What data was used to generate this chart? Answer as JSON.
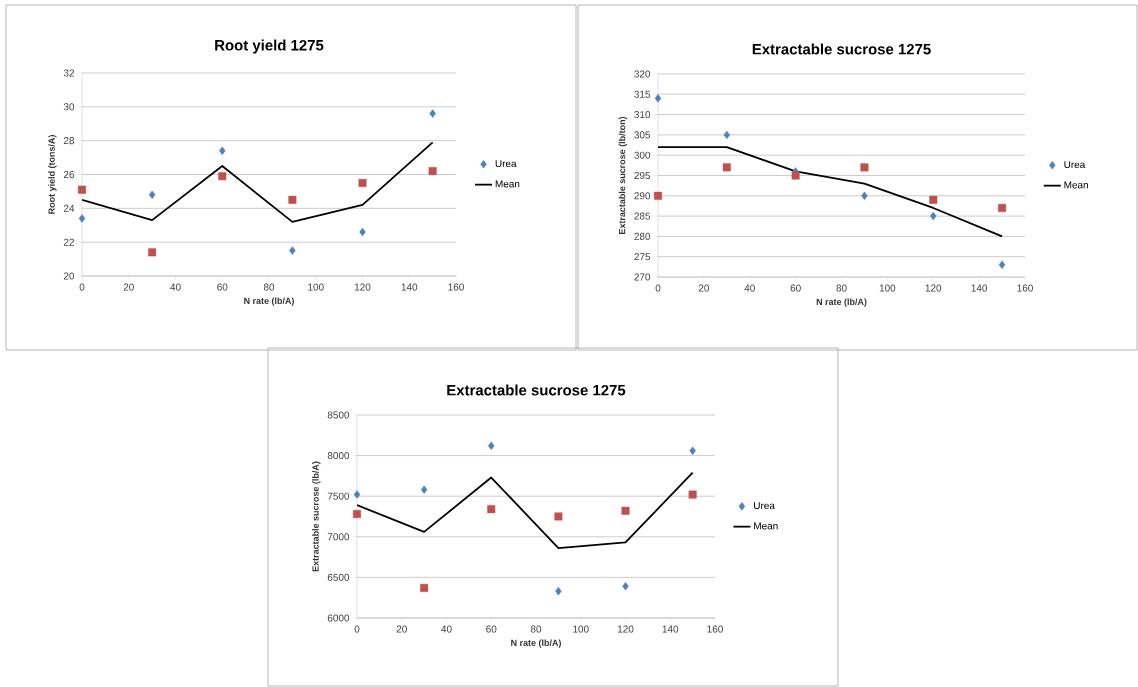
{
  "chart_data": [
    {
      "type": "scatter",
      "title": "Root yield 1275",
      "xlabel": "N rate (lb/A)",
      "ylabel": "Root yield (tons/A)",
      "x": [
        0,
        30,
        60,
        90,
        120,
        150
      ],
      "xlim": [
        0,
        160
      ],
      "xticks": [
        0,
        20,
        40,
        60,
        80,
        100,
        120,
        140,
        160
      ],
      "ylim": [
        20,
        32
      ],
      "yticks": [
        20,
        22,
        24,
        26,
        28,
        30,
        32
      ],
      "grid": "y",
      "legend": "right",
      "series": [
        {
          "name": "Urea",
          "marker": "diamond",
          "color": "#4f81bd",
          "values": [
            23.4,
            24.8,
            27.4,
            21.5,
            22.6,
            29.6
          ]
        },
        {
          "type": "scatter",
          "marker": "square",
          "color": "#c0504d",
          "values": [
            25.1,
            21.4,
            25.9,
            24.5,
            25.5,
            26.2
          ]
        },
        {
          "name": "Mean",
          "type": "line",
          "marker": "none",
          "color": "#000000",
          "values": [
            24.5,
            23.3,
            26.5,
            23.2,
            24.2,
            27.9
          ]
        }
      ]
    },
    {
      "type": "scatter",
      "title": "Extractable sucrose 1275",
      "xlabel": "N rate (lb/A)",
      "ylabel": "Extractable sucrose (lb/ton)",
      "x": [
        0,
        30,
        60,
        90,
        120,
        150
      ],
      "xlim": [
        0,
        160
      ],
      "xticks": [
        0,
        20,
        40,
        60,
        80,
        100,
        120,
        140,
        160
      ],
      "ylim": [
        270,
        320
      ],
      "yticks": [
        270,
        275,
        280,
        285,
        290,
        295,
        300,
        305,
        310,
        315,
        320
      ],
      "grid": "y",
      "legend": "right",
      "series": [
        {
          "name": "Urea",
          "marker": "diamond",
          "color": "#4f81bd",
          "values": [
            314,
            305,
            296,
            290,
            285,
            273
          ]
        },
        {
          "type": "scatter",
          "marker": "square",
          "color": "#c0504d",
          "values": [
            290,
            297,
            295,
            297,
            289,
            287
          ]
        },
        {
          "name": "Mean",
          "type": "line",
          "marker": "none",
          "color": "#000000",
          "values": [
            302,
            302,
            296,
            293,
            287,
            280
          ]
        }
      ]
    },
    {
      "type": "scatter",
      "title": "Extractable sucrose 1275",
      "xlabel": "N rate (lb/A)",
      "ylabel": "Extractable sucrose (lb/A)",
      "x": [
        0,
        30,
        60,
        90,
        120,
        150
      ],
      "xlim": [
        0,
        160
      ],
      "xticks": [
        0,
        20,
        40,
        60,
        80,
        100,
        120,
        140,
        160
      ],
      "ylim": [
        6000,
        8500
      ],
      "yticks": [
        6000,
        6500,
        7000,
        7500,
        8000,
        8500
      ],
      "grid": "y",
      "legend": "right",
      "series": [
        {
          "name": "Urea",
          "marker": "diamond",
          "color": "#4f81bd",
          "values": [
            7520,
            7580,
            8120,
            6330,
            6390,
            8060
          ]
        },
        {
          "type": "scatter",
          "marker": "square",
          "color": "#c0504d",
          "values": [
            7280,
            6370,
            7340,
            7250,
            7320,
            7520
          ]
        },
        {
          "name": "Mean",
          "type": "line",
          "marker": "none",
          "color": "#000000",
          "values": [
            7390,
            7060,
            7730,
            6860,
            6930,
            7790
          ]
        }
      ]
    }
  ]
}
